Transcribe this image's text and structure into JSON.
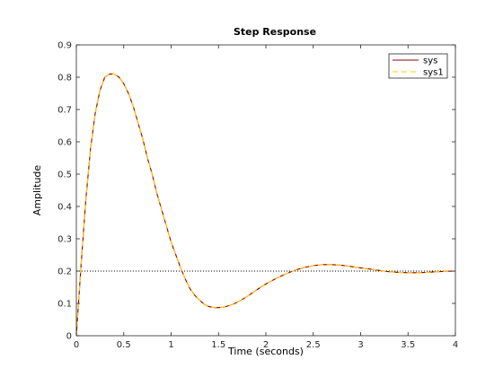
{
  "chart_data": {
    "type": "line",
    "title": "Step Response",
    "xlabel": "Time (seconds)",
    "ylabel": "Amplitude",
    "xlim": [
      0,
      4
    ],
    "ylim": [
      0,
      0.9
    ],
    "xticks": [
      0,
      0.5,
      1,
      1.5,
      2,
      2.5,
      3,
      3.5,
      4
    ],
    "xtick_labels": [
      "0",
      "0.5",
      "1",
      "1.5",
      "2",
      "2.5",
      "3",
      "3.5",
      "4"
    ],
    "yticks": [
      0,
      0.1,
      0.2,
      0.3,
      0.4,
      0.5,
      0.6,
      0.7,
      0.8,
      0.9
    ],
    "ytick_labels": [
      "0",
      "0.1",
      "0.2",
      "0.3",
      "0.4",
      "0.5",
      "0.6",
      "0.7",
      "0.8",
      "0.9"
    ],
    "grid": false,
    "legend_position": "top-right",
    "steady_state": 0.2,
    "x": [
      0,
      0.05,
      0.1,
      0.15,
      0.2,
      0.25,
      0.3,
      0.35,
      0.4,
      0.45,
      0.5,
      0.55,
      0.6,
      0.65,
      0.7,
      0.75,
      0.8,
      0.85,
      0.9,
      0.95,
      1.0,
      1.05,
      1.1,
      1.15,
      1.2,
      1.25,
      1.3,
      1.35,
      1.4,
      1.45,
      1.5,
      1.55,
      1.6,
      1.65,
      1.7,
      1.75,
      1.8,
      1.85,
      1.9,
      1.95,
      2.0,
      2.1,
      2.2,
      2.3,
      2.4,
      2.5,
      2.6,
      2.7,
      2.8,
      2.9,
      3.0,
      3.1,
      3.2,
      3.3,
      3.4,
      3.5,
      3.6,
      3.7,
      3.8,
      3.9,
      4.0
    ],
    "series": [
      {
        "name": "sys",
        "color": "#8b0000",
        "dash": "solid",
        "values": [
          0,
          0.22,
          0.42,
          0.58,
          0.69,
          0.76,
          0.8,
          0.81,
          0.81,
          0.8,
          0.78,
          0.75,
          0.71,
          0.66,
          0.61,
          0.55,
          0.5,
          0.44,
          0.39,
          0.34,
          0.29,
          0.25,
          0.21,
          0.175,
          0.145,
          0.125,
          0.11,
          0.097,
          0.09,
          0.087,
          0.087,
          0.088,
          0.092,
          0.097,
          0.104,
          0.112,
          0.121,
          0.131,
          0.141,
          0.151,
          0.16,
          0.176,
          0.19,
          0.202,
          0.211,
          0.217,
          0.22,
          0.22,
          0.218,
          0.214,
          0.21,
          0.206,
          0.202,
          0.198,
          0.196,
          0.195,
          0.195,
          0.196,
          0.198,
          0.199,
          0.2
        ]
      },
      {
        "name": "sys1",
        "color": "#ffcc00",
        "dash": "dashed",
        "values": [
          0,
          0.22,
          0.42,
          0.58,
          0.69,
          0.76,
          0.8,
          0.81,
          0.81,
          0.8,
          0.78,
          0.75,
          0.71,
          0.66,
          0.61,
          0.55,
          0.5,
          0.44,
          0.39,
          0.34,
          0.29,
          0.25,
          0.21,
          0.175,
          0.145,
          0.125,
          0.11,
          0.097,
          0.09,
          0.087,
          0.087,
          0.088,
          0.092,
          0.097,
          0.104,
          0.112,
          0.121,
          0.131,
          0.141,
          0.151,
          0.16,
          0.176,
          0.19,
          0.202,
          0.211,
          0.217,
          0.22,
          0.22,
          0.218,
          0.214,
          0.21,
          0.206,
          0.202,
          0.198,
          0.196,
          0.195,
          0.195,
          0.196,
          0.198,
          0.199,
          0.2
        ]
      }
    ]
  }
}
